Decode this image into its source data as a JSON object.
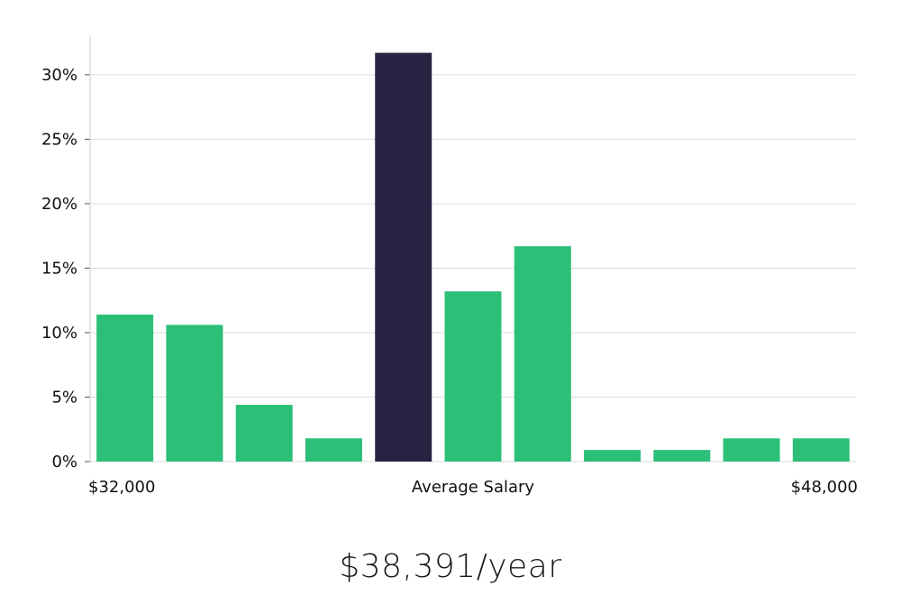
{
  "colors": {
    "bar": "#2bbf78",
    "bar_highlight": "#272443",
    "grid": "#dcdcdc",
    "axis": "#cccccc"
  },
  "chart_data": {
    "type": "bar",
    "categories": [
      "1",
      "2",
      "3",
      "4",
      "5",
      "6",
      "7",
      "8",
      "9",
      "10",
      "11"
    ],
    "values": [
      11.4,
      10.6,
      4.4,
      1.8,
      31.7,
      13.2,
      16.7,
      0.9,
      0.9,
      1.8,
      1.8
    ],
    "highlight_index": 4,
    "ylim": [
      0,
      33
    ],
    "yticks": [
      0,
      5,
      10,
      15,
      20,
      25,
      30
    ],
    "ytick_format": "%",
    "grid": true,
    "x_labels": {
      "left": "$32,000",
      "center": "Average Salary",
      "right": "$48,000"
    }
  },
  "summary": "$38,391/year"
}
